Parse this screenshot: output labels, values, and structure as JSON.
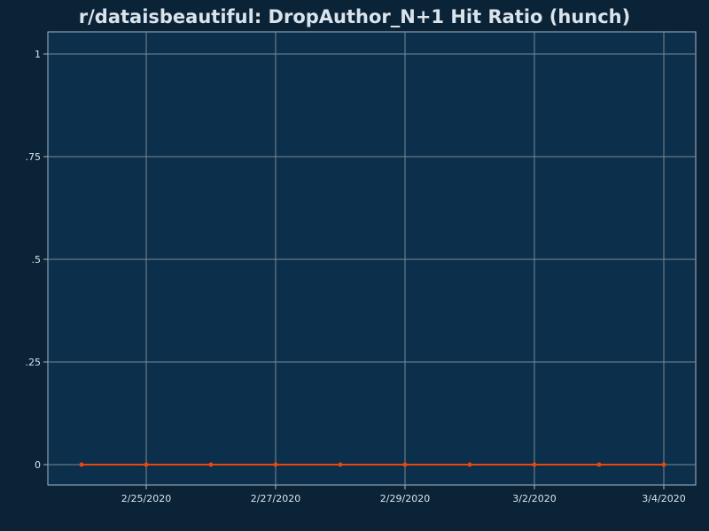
{
  "chart_data": {
    "type": "line",
    "title": "r/dataisbeautiful: DropAuthor_N+1 Hit Ratio (hunch)",
    "xlabel": "",
    "ylabel": "",
    "x_tick_labels": [
      "2/25/2020",
      "2/27/2020",
      "2/29/2020",
      "3/2/2020",
      "3/4/2020"
    ],
    "y_tick_labels": [
      "0",
      ".25",
      ".5",
      ".75",
      "1"
    ],
    "ylim": [
      0,
      1
    ],
    "grid": true,
    "series": [
      {
        "color": "#e8480f",
        "x": [
          "2/24/2020",
          "2/25/2020",
          "2/26/2020",
          "2/27/2020",
          "2/28/2020",
          "2/29/2020",
          "3/1/2020",
          "3/2/2020",
          "3/3/2020",
          "3/4/2020"
        ],
        "y": [
          0,
          0,
          0,
          0,
          0,
          0,
          0,
          0,
          0,
          0
        ]
      }
    ]
  },
  "colors": {
    "background": "#0b2336",
    "plot_background": "#0c2f4b",
    "grid": "#7a8896",
    "text": "#d9e3ec",
    "axis": "#aab7c4"
  }
}
